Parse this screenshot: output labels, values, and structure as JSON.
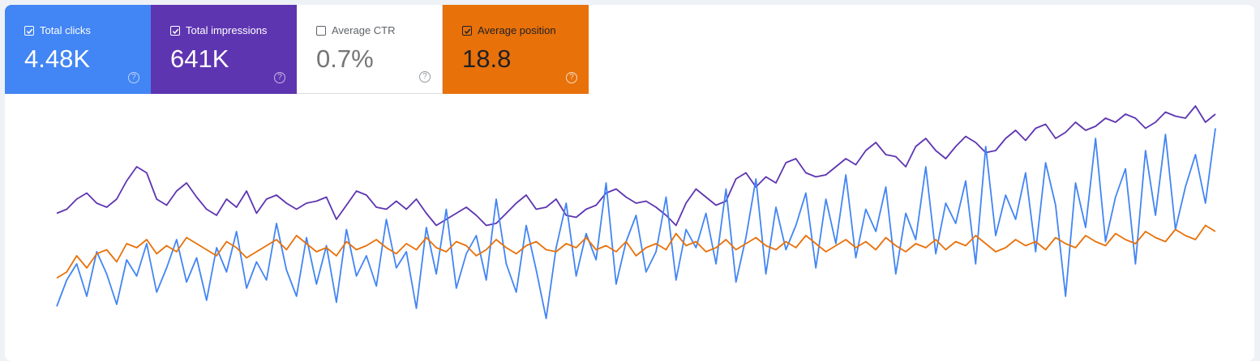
{
  "metrics": [
    {
      "label": "Total clicks",
      "value": "4.48K",
      "checked": true,
      "color": "#4285f4",
      "help_icon": "help-circle-icon"
    },
    {
      "label": "Total impressions",
      "value": "641K",
      "checked": true,
      "color": "#5e35b1",
      "help_icon": "help-circle-icon"
    },
    {
      "label": "Average CTR",
      "value": "0.7%",
      "checked": false,
      "color": "#ffffff",
      "help_icon": "help-circle-icon"
    },
    {
      "label": "Average position",
      "value": "18.8",
      "checked": true,
      "color": "#e8710a",
      "help_icon": "help-circle-icon"
    }
  ],
  "chart_data": {
    "type": "line",
    "xlabel": "",
    "ylabel": "",
    "grid": false,
    "legend": "none",
    "series": [
      {
        "name": "Total impressions",
        "color": "#5e35b1",
        "values": [
          55,
          57,
          62,
          65,
          60,
          58,
          62,
          71,
          78,
          75,
          62,
          59,
          66,
          70,
          63,
          57,
          54,
          62,
          58,
          66,
          55,
          62,
          64,
          60,
          57,
          60,
          61,
          63,
          52,
          59,
          66,
          64,
          58,
          57,
          61,
          57,
          62,
          55,
          49,
          52,
          55,
          58,
          54,
          49,
          50,
          55,
          60,
          64,
          57,
          58,
          62,
          54,
          53,
          57,
          59,
          65,
          67,
          63,
          60,
          61,
          58,
          54,
          49,
          60,
          67,
          63,
          59,
          61,
          72,
          75,
          68,
          73,
          70,
          80,
          82,
          75,
          73,
          74,
          78,
          82,
          79,
          86,
          90,
          84,
          83,
          78,
          88,
          92,
          86,
          82,
          88,
          93,
          90,
          85,
          86,
          92,
          96,
          91,
          97,
          99,
          92,
          95,
          100,
          96,
          98,
          102,
          100,
          104,
          102,
          97,
          100,
          105,
          103,
          102,
          108,
          100,
          104
        ]
      },
      {
        "name": "Total clicks",
        "color": "#4285f4",
        "values": [
          9,
          22,
          30,
          14,
          36,
          25,
          10,
          32,
          24,
          40,
          16,
          28,
          42,
          21,
          33,
          12,
          38,
          26,
          46,
          18,
          31,
          22,
          50,
          27,
          14,
          43,
          20,
          39,
          11,
          47,
          24,
          34,
          19,
          52,
          28,
          36,
          8,
          48,
          25,
          57,
          18,
          35,
          44,
          22,
          62,
          30,
          16,
          49,
          27,
          3,
          38,
          60,
          24,
          45,
          32,
          70,
          20,
          41,
          54,
          26,
          36,
          63,
          22,
          47,
          38,
          55,
          30,
          67,
          21,
          43,
          72,
          25,
          58,
          37,
          49,
          65,
          28,
          62,
          40,
          74,
          33,
          57,
          46,
          68,
          25,
          55,
          42,
          78,
          35,
          60,
          50,
          71,
          30,
          88,
          44,
          64,
          52,
          75,
          36,
          80,
          59,
          14,
          70,
          48,
          92,
          41,
          63,
          77,
          30,
          86,
          54,
          94,
          47,
          68,
          84,
          60,
          97
        ]
      },
      {
        "name": "Average position",
        "color": "#e8710a",
        "values": [
          23,
          26,
          34,
          28,
          35,
          37,
          31,
          40,
          38,
          42,
          35,
          39,
          36,
          43,
          40,
          37,
          34,
          41,
          38,
          33,
          36,
          39,
          42,
          37,
          44,
          40,
          36,
          38,
          34,
          41,
          37,
          39,
          42,
          38,
          35,
          40,
          37,
          43,
          38,
          36,
          41,
          39,
          34,
          37,
          42,
          38,
          35,
          39,
          41,
          37,
          36,
          40,
          38,
          43,
          37,
          39,
          36,
          41,
          34,
          38,
          40,
          37,
          45,
          39,
          41,
          36,
          38,
          42,
          37,
          40,
          43,
          39,
          37,
          41,
          38,
          44,
          40,
          36,
          39,
          42,
          38,
          41,
          37,
          43,
          39,
          36,
          40,
          38,
          42,
          37,
          41,
          39,
          44,
          40,
          36,
          38,
          42,
          39,
          41,
          37,
          43,
          40,
          38,
          44,
          41,
          39,
          45,
          42,
          40,
          46,
          43,
          41,
          47,
          44,
          42,
          49,
          46
        ]
      }
    ]
  }
}
